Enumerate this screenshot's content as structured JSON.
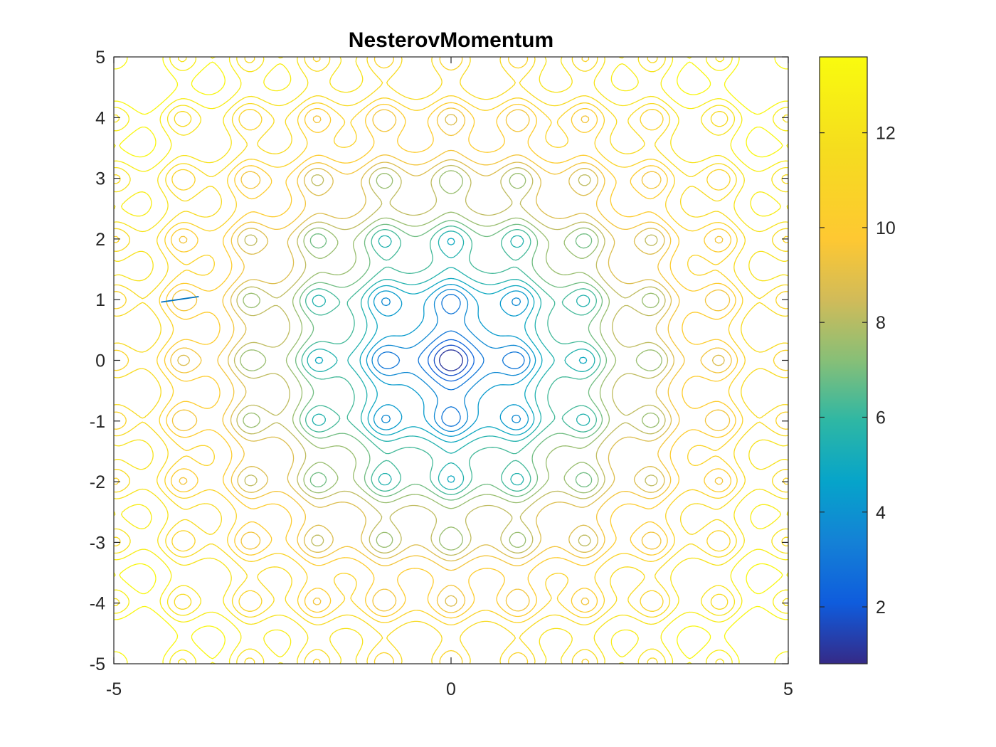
{
  "chart_data": {
    "type": "contour",
    "title": "NesterovMomentum",
    "function": "Ackley-style",
    "xlabel": "",
    "ylabel": "",
    "xlim": [
      -5,
      5
    ],
    "ylim": [
      -5,
      5
    ],
    "x_ticks": [
      "-5",
      "0",
      "5"
    ],
    "y_ticks": [
      "5",
      "4",
      "3",
      "2",
      "1",
      "0",
      "-1",
      "-2",
      "-3",
      "-4",
      "-5"
    ],
    "y_tick_values": [
      5,
      4,
      3,
      2,
      1,
      0,
      -1,
      -2,
      -3,
      -4,
      -5
    ],
    "x_tick_values": [
      -5,
      0,
      5
    ],
    "contour_level_range": [
      0.8,
      13.6
    ],
    "contour_level_count": 20,
    "colormap": "parula",
    "colorbar": {
      "range": [
        0.8,
        13.6
      ],
      "ticks": [
        "12",
        "10",
        "8",
        "6",
        "4",
        "2"
      ],
      "tick_values": [
        12,
        10,
        8,
        6,
        4,
        2
      ]
    },
    "optimizer_path": {
      "name": "NesterovMomentum",
      "color": "#0072bd",
      "x": [
        -4.3,
        -3.74
      ],
      "y": [
        0.96,
        1.05
      ]
    },
    "grid": false,
    "box": true
  }
}
